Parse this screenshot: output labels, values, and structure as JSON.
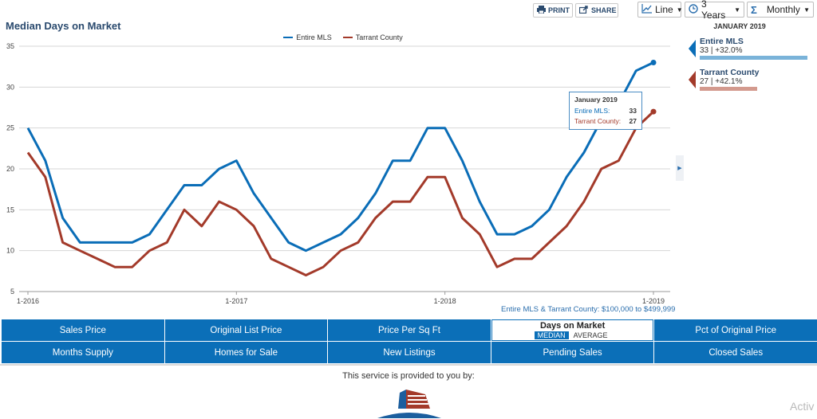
{
  "header": {
    "title": "Median Days on Market",
    "print_label": "PRINT",
    "share_label": "SHARE",
    "chart_type_value": "Line",
    "timespan_value": "3 Years",
    "interval_value": "Monthly"
  },
  "legend": {
    "series_1": "Entire MLS",
    "series_2": "Tarrant County"
  },
  "tooltip": {
    "title": "January 2019",
    "label_1": "Entire MLS:",
    "value_1": "33",
    "label_2": "Tarrant County:",
    "value_2": "27"
  },
  "range_note": "Entire MLS & Tarrant County: $100,000 to $499,999",
  "side_panel": {
    "heading": "JANUARY 2019",
    "items": [
      {
        "name": "Entire MLS",
        "detail": "33 | +32.0%",
        "fraction": 1.0
      },
      {
        "name": "Tarrant County",
        "detail": "27 | +42.1%",
        "fraction": 0.53
      }
    ]
  },
  "colors": {
    "entire_mls": "#0a6db7",
    "tarrant_county": "#a33a2a",
    "tab_blue": "#0b6fb8"
  },
  "tabs": {
    "row1": [
      "Sales Price",
      "Original List Price",
      "Price Per Sq Ft",
      "Days on Market",
      "Pct of Original Price"
    ],
    "row2": [
      "Months Supply",
      "Homes for Sale",
      "New Listings",
      "Pending Sales",
      "Closed Sales"
    ],
    "active_sub_on": "MEDIAN",
    "active_sub_off": "AVERAGE"
  },
  "footer": {
    "provided_text": "This service is provided to you by:",
    "watermark": "Activ"
  },
  "chart_data": {
    "type": "line",
    "x": [
      "1-2016",
      "2-2016",
      "3-2016",
      "4-2016",
      "5-2016",
      "6-2016",
      "7-2016",
      "8-2016",
      "9-2016",
      "10-2016",
      "11-2016",
      "12-2016",
      "1-2017",
      "2-2017",
      "3-2017",
      "4-2017",
      "5-2017",
      "6-2017",
      "7-2017",
      "8-2017",
      "9-2017",
      "10-2017",
      "11-2017",
      "12-2017",
      "1-2018",
      "2-2018",
      "3-2018",
      "4-2018",
      "5-2018",
      "6-2018",
      "7-2018",
      "8-2018",
      "9-2018",
      "10-2018",
      "11-2018",
      "12-2018",
      "1-2019"
    ],
    "x_tick_labels": [
      "1-2016",
      "1-2017",
      "1-2018",
      "1-2019"
    ],
    "y_ticks": [
      5,
      10,
      15,
      20,
      25,
      30,
      35
    ],
    "ylim": [
      5,
      35
    ],
    "series": [
      {
        "name": "Entire MLS",
        "values": [
          25,
          21,
          14,
          11,
          11,
          11,
          11,
          12,
          15,
          18,
          18,
          20,
          21,
          17,
          14,
          11,
          10,
          11,
          12,
          14,
          17,
          21,
          21,
          25,
          25,
          21,
          16,
          12,
          12,
          13,
          15,
          19,
          22,
          26,
          28,
          32,
          33
        ]
      },
      {
        "name": "Tarrant County",
        "values": [
          22,
          19,
          11,
          10,
          9,
          8,
          8,
          10,
          11,
          15,
          13,
          16,
          15,
          13,
          9,
          8,
          7,
          8,
          10,
          11,
          14,
          16,
          16,
          19,
          19,
          14,
          12,
          8,
          9,
          9,
          11,
          13,
          16,
          20,
          21,
          25,
          27
        ]
      }
    ],
    "grid": true,
    "legend_position": "top-center"
  }
}
